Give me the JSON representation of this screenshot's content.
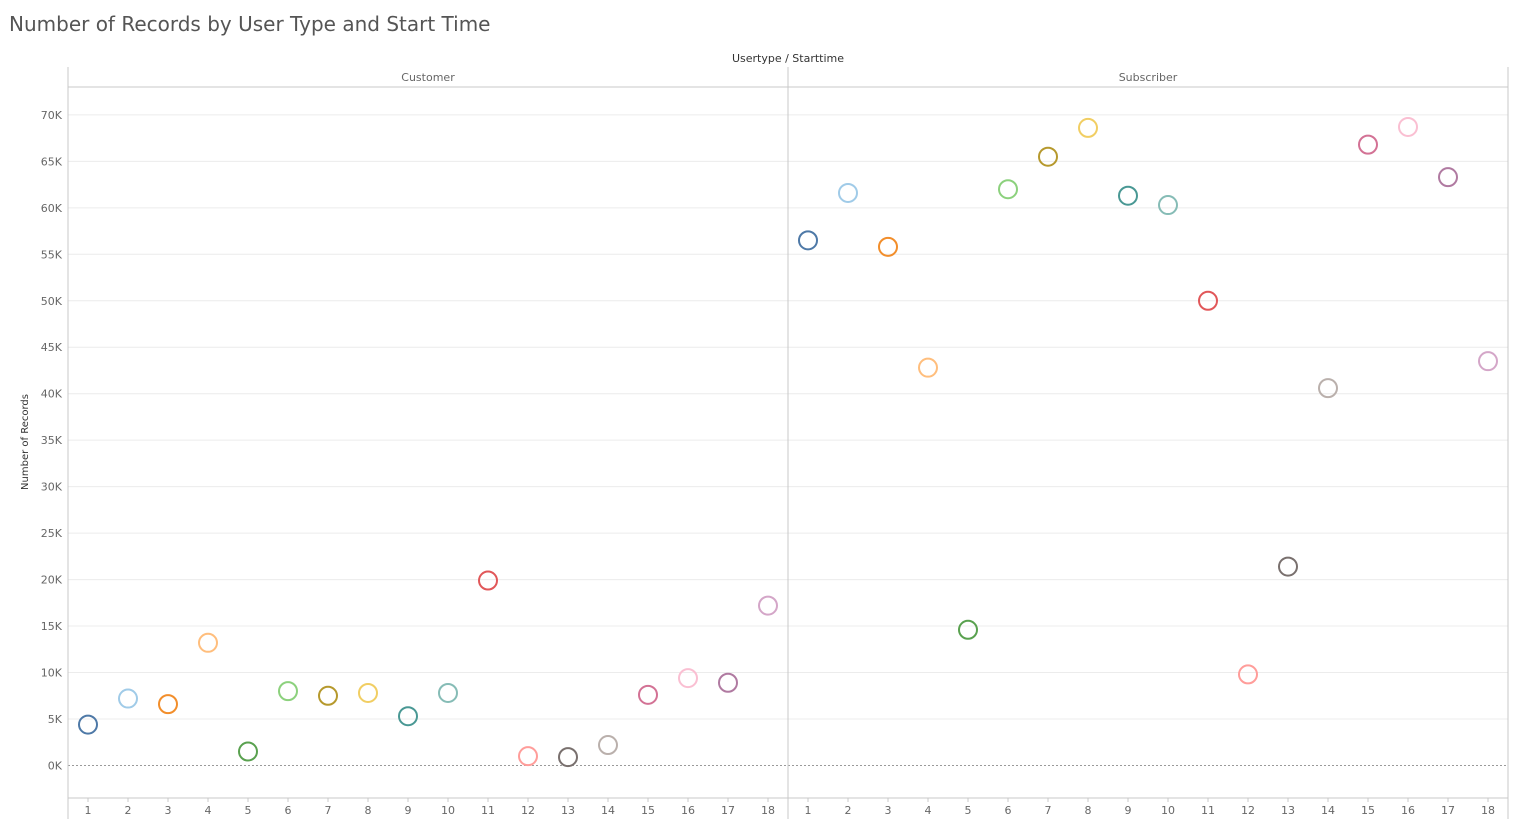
{
  "title": "Number of Records by User Type and Start Time",
  "chart_data": {
    "type": "scatter",
    "title": "Number of Records by User Type and Start Time",
    "header_label": "Usertype / Starttime",
    "ylabel": "Number of Records",
    "ylim": [
      -3500,
      73000
    ],
    "y_ticks": [
      0,
      5000,
      10000,
      15000,
      20000,
      25000,
      30000,
      35000,
      40000,
      45000,
      50000,
      55000,
      60000,
      65000,
      70000
    ],
    "y_tick_labels": [
      "0K",
      "5K",
      "10K",
      "15K",
      "20K",
      "25K",
      "30K",
      "35K",
      "40K",
      "45K",
      "50K",
      "55K",
      "60K",
      "65K",
      "70K"
    ],
    "grid": true,
    "x": [
      1,
      2,
      3,
      4,
      5,
      6,
      7,
      8,
      9,
      10,
      11,
      12,
      13,
      14,
      15,
      16,
      17,
      18
    ],
    "x_tick_labels": [
      "1",
      "2",
      "3",
      "4",
      "5",
      "6",
      "7",
      "8",
      "9",
      "10",
      "11",
      "12",
      "13",
      "14",
      "15",
      "16",
      "17",
      "18"
    ],
    "color_by_x": [
      "#4e79a7",
      "#a0cbe8",
      "#f28e2b",
      "#ffbe7d",
      "#59a14f",
      "#8cd17d",
      "#b6992d",
      "#f1ce63",
      "#499894",
      "#86bcb6",
      "#e15759",
      "#ff9d9a",
      "#79706e",
      "#bab0ac",
      "#d37295",
      "#fabfd2",
      "#b07aa1",
      "#d4a6c8"
    ],
    "panels": [
      {
        "name": "Customer",
        "values": [
          4400,
          7200,
          6600,
          13200,
          1500,
          8000,
          7500,
          7800,
          5300,
          7800,
          19900,
          1000,
          900,
          2200,
          7600,
          9400,
          8900,
          17200
        ]
      },
      {
        "name": "Subscriber",
        "values": [
          56500,
          61600,
          55800,
          42800,
          14600,
          62000,
          65500,
          68600,
          61300,
          60300,
          50000,
          9800,
          21400,
          40600,
          66800,
          68700,
          63300,
          43500
        ]
      }
    ]
  }
}
